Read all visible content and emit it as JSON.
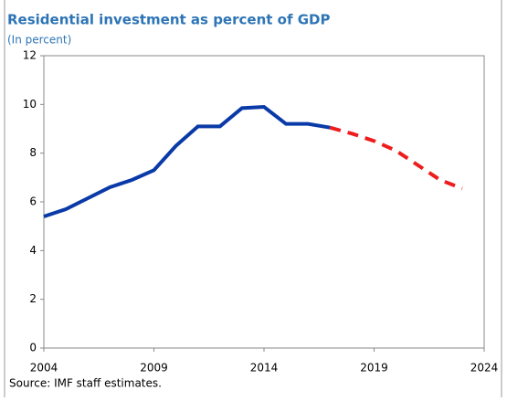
{
  "chart_data": {
    "type": "line",
    "title": "Residential investment as percent of GDP",
    "subtitle": "(In percent)",
    "source": "Source: IMF staff estimates.",
    "x": [
      2004,
      2005,
      2006,
      2007,
      2008,
      2009,
      2010,
      2011,
      2012,
      2013,
      2014,
      2015,
      2016,
      2017,
      2018,
      2019,
      2020,
      2021,
      2022,
      2023
    ],
    "series": [
      {
        "color": "#0a3aa8",
        "line_style": "solid",
        "values": [
          5.4,
          5.7,
          6.15,
          6.6,
          6.9,
          7.3,
          8.3,
          9.1,
          9.1,
          9.85,
          9.9,
          9.2,
          9.2,
          9.05,
          null,
          null,
          null,
          null,
          null,
          null
        ]
      },
      {
        "color": "#ee1c1c",
        "line_style": "dashed",
        "values": [
          null,
          null,
          null,
          null,
          null,
          null,
          null,
          null,
          null,
          null,
          null,
          null,
          null,
          9.05,
          8.8,
          8.5,
          8.1,
          7.5,
          6.9,
          6.55
        ]
      }
    ],
    "xlim": [
      2004,
      2024
    ],
    "xticks": [
      2004,
      2009,
      2014,
      2019,
      2024
    ],
    "ylim": [
      0,
      12
    ],
    "yticks": [
      0,
      2,
      4,
      6,
      8,
      10,
      12
    ]
  }
}
